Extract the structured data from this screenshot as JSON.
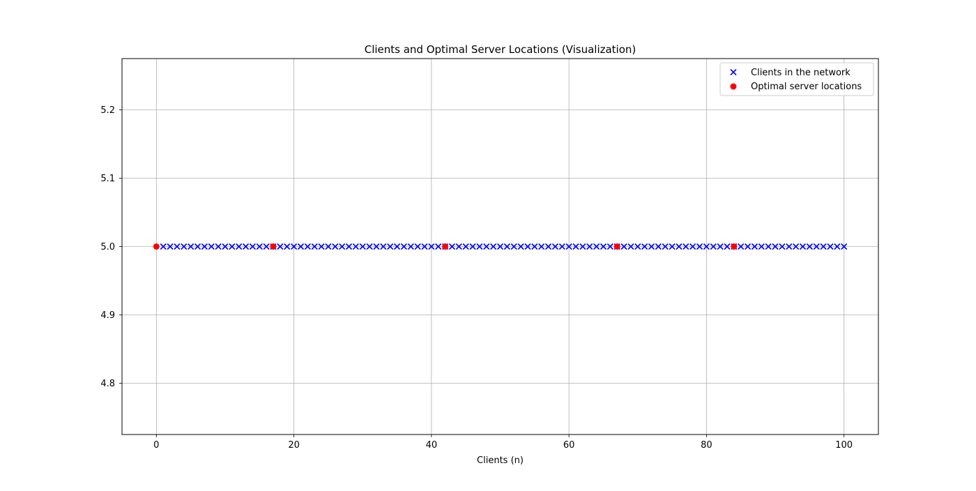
{
  "chart_data": {
    "type": "scatter",
    "title": "Clients and Optimal Server Locations (Visualization)",
    "xlabel": "Clients (n)",
    "ylabel": "",
    "xlim": [
      -5,
      105
    ],
    "ylim": [
      4.725,
      5.275
    ],
    "x_ticks": [
      0,
      20,
      40,
      60,
      80,
      100
    ],
    "y_ticks": [
      4.8,
      4.9,
      5.0,
      5.1,
      5.2
    ],
    "grid": true,
    "legend_position": "top-right",
    "series": [
      {
        "name": "Clients in the network",
        "marker": "x",
        "color": "#0000ff",
        "x": [
          1,
          2,
          3,
          4,
          5,
          6,
          7,
          8,
          9,
          10,
          11,
          12,
          13,
          14,
          15,
          16,
          17,
          18,
          19,
          20,
          21,
          22,
          23,
          24,
          25,
          26,
          27,
          28,
          29,
          30,
          31,
          32,
          33,
          34,
          35,
          36,
          37,
          38,
          39,
          40,
          41,
          42,
          43,
          44,
          45,
          46,
          47,
          48,
          49,
          50,
          51,
          52,
          53,
          54,
          55,
          56,
          57,
          58,
          59,
          60,
          61,
          62,
          63,
          64,
          65,
          66,
          67,
          68,
          69,
          70,
          71,
          72,
          73,
          74,
          75,
          76,
          77,
          78,
          79,
          80,
          81,
          82,
          83,
          84,
          85,
          86,
          87,
          88,
          89,
          90,
          91,
          92,
          93,
          94,
          95,
          96,
          97,
          98,
          99,
          100
        ],
        "y_constant": 5.0
      },
      {
        "name": "Optimal server locations",
        "marker": "o",
        "color": "#ff0000",
        "x": [
          0,
          17,
          42,
          67,
          84
        ],
        "y_constant": 5.0
      }
    ]
  }
}
